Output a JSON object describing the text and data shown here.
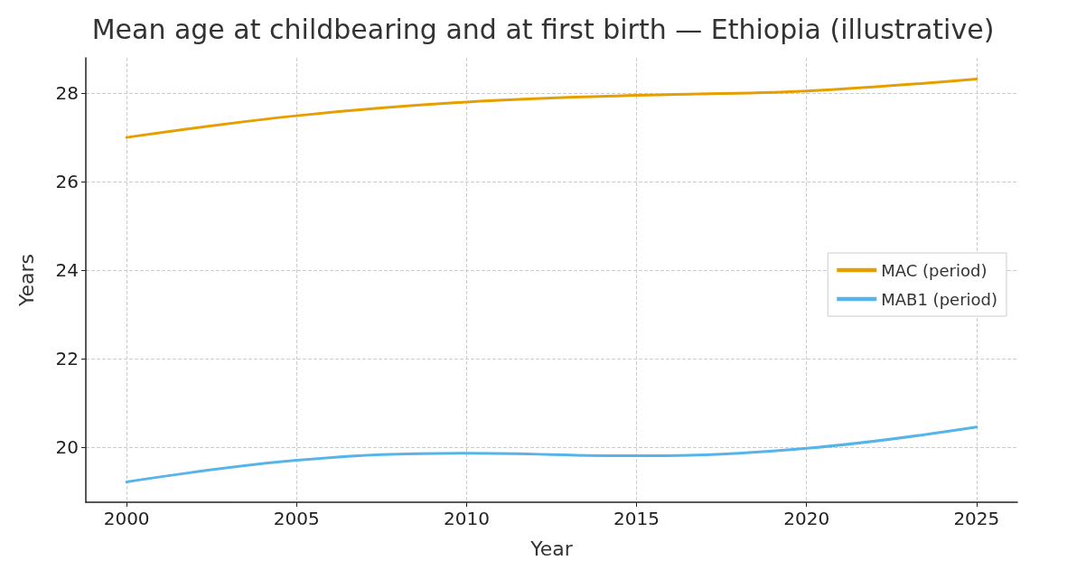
{
  "chart_data": {
    "type": "line",
    "title": "Mean age at childbearing and at first birth — Ethiopia (illustrative)",
    "xlabel": "Year",
    "ylabel": "Years",
    "x": [
      2000,
      2005,
      2010,
      2015,
      2020,
      2025
    ],
    "series": [
      {
        "name": "MAC (period)",
        "color": "#e69f00",
        "values": [
          27.0,
          27.49,
          27.8,
          27.95,
          28.05,
          28.32
        ]
      },
      {
        "name": "MAB1 (period)",
        "color": "#56b4e9",
        "values": [
          19.21,
          19.7,
          19.86,
          19.8,
          19.97,
          20.45
        ]
      }
    ],
    "xlim": [
      1998.8,
      2026.2
    ],
    "xticks": [
      2000,
      2005,
      2010,
      2015,
      2020,
      2025
    ],
    "ylim": [
      18.75,
      28.8
    ],
    "yticks": [
      20,
      22,
      24,
      26,
      28
    ],
    "grid": true,
    "legend": "right",
    "marker": "none",
    "line_style": "solid"
  }
}
